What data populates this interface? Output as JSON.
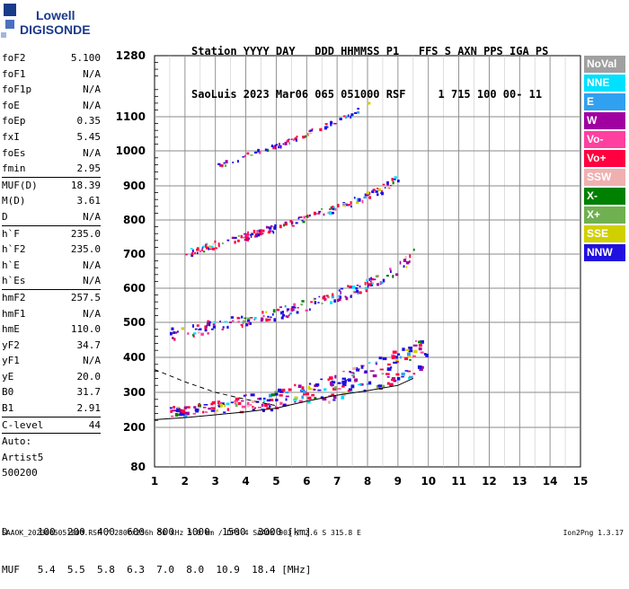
{
  "logo": {
    "line1": "Lowell",
    "line2": "DIGISONDE"
  },
  "header": {
    "line1": "Station YYYY DAY   DDD HHMMSS P1   FFS S AXN PPS IGA PS",
    "line2": "SaoLuis 2023 Mar06 065 051000 RSF     1 715 100 00- 11"
  },
  "params": {
    "group1": [
      {
        "name": "foF2",
        "value": "5.100"
      },
      {
        "name": "foF1",
        "value": "N/A"
      },
      {
        "name": "foF1p",
        "value": "N/A"
      },
      {
        "name": "foE",
        "value": "N/A"
      },
      {
        "name": "foEp",
        "value": "0.35"
      },
      {
        "name": "fxI",
        "value": "5.45"
      },
      {
        "name": "foEs",
        "value": "N/A"
      },
      {
        "name": "fmin",
        "value": "2.95"
      }
    ],
    "group2": [
      {
        "name": "MUF(D)",
        "value": "18.39"
      },
      {
        "name": "M(D)",
        "value": "3.61"
      },
      {
        "name": "D",
        "value": "N/A"
      }
    ],
    "group3": [
      {
        "name": "h`F",
        "value": "235.0"
      },
      {
        "name": "h`F2",
        "value": "235.0"
      },
      {
        "name": "h`E",
        "value": "N/A"
      },
      {
        "name": "h`Es",
        "value": "N/A"
      }
    ],
    "group4": [
      {
        "name": "hmF2",
        "value": "257.5"
      },
      {
        "name": "hmF1",
        "value": "N/A"
      },
      {
        "name": "hmE",
        "value": "110.0"
      },
      {
        "name": "yF2",
        "value": "34.7"
      },
      {
        "name": "yF1",
        "value": "N/A"
      },
      {
        "name": "yE",
        "value": "20.0"
      },
      {
        "name": "B0",
        "value": "31.7"
      },
      {
        "name": "B1",
        "value": "2.91"
      }
    ],
    "group5": [
      {
        "name": "C-level",
        "value": "44"
      }
    ],
    "group6": [
      {
        "name": "Auto:",
        "value": ""
      },
      {
        "name": "Artist5",
        "value": ""
      },
      {
        "name": "500200",
        "value": ""
      }
    ]
  },
  "legend": [
    {
      "label": "NoVal",
      "color": "#a0a0a0"
    },
    {
      "label": "NNE",
      "color": "#00e0ff"
    },
    {
      "label": "E",
      "color": "#30a0f0"
    },
    {
      "label": "W",
      "color": "#a000a0"
    },
    {
      "label": "Vo-",
      "color": "#ff40a0"
    },
    {
      "label": "Vo+",
      "color": "#ff0040"
    },
    {
      "label": "SSW",
      "color": "#f0b0b0"
    },
    {
      "label": "X-",
      "color": "#008000"
    },
    {
      "label": "X+",
      "color": "#70b050"
    },
    {
      "label": "SSE",
      "color": "#d0d000"
    },
    {
      "label": "NNW",
      "color": "#2010e0"
    }
  ],
  "footer": {
    "line1": "D     100  200  400  600  800  1000  1500  3000 [km]",
    "line2": "MUF   5.4  5.5  5.8  6.3  7.0  8.0  10.9  18.4 [MHz]",
    "bottom": "SAAOK_2023065051000.RSF / 280fx256h 50 kHz 5.0 km / DPS-4 SAAOK 903 / 2.6 S 315.8 E",
    "version": "Ion2Png 1.3.17"
  },
  "chart_data": {
    "type": "scatter",
    "x_ticks": [
      1,
      2,
      3,
      4,
      5,
      6,
      7,
      8,
      9,
      10,
      11,
      12,
      13,
      14,
      15
    ],
    "y_ticks": [
      80,
      200,
      300,
      400,
      500,
      600,
      700,
      800,
      900,
      1000,
      1100,
      1280
    ],
    "xlim": [
      1,
      15
    ],
    "ylim": [
      80,
      1280
    ],
    "grid": true,
    "traces": [
      {
        "name": "",
        "x": [
          1.5,
          2,
          2.5,
          3,
          3.5,
          4,
          4.5,
          5,
          5.5,
          6,
          6.5,
          7,
          7.5,
          8,
          8.5,
          9,
          9.5,
          10
        ],
        "y": [
          240,
          245,
          250,
          252,
          255,
          258,
          262,
          268,
          275,
          282,
          290,
          300,
          312,
          325,
          340,
          355,
          375,
          395
        ]
      },
      {
        "name": "",
        "x": [
          1.5,
          2,
          2.5,
          3,
          3.5,
          4,
          4.5,
          5,
          5.5,
          6,
          6.5,
          7,
          7.5,
          8,
          8.5,
          9,
          9.5
        ],
        "y": [
          460,
          468,
          476,
          485,
          492,
          500,
          510,
          520,
          530,
          545,
          558,
          572,
          590,
          605,
          625,
          650,
          690
        ]
      },
      {
        "name": "",
        "x": [
          2,
          2.5,
          3,
          3.5,
          4,
          4.5,
          5,
          5.5,
          6,
          6.5,
          7,
          7.5,
          8,
          8.5,
          9
        ],
        "y": [
          700,
          712,
          725,
          738,
          750,
          762,
          775,
          790,
          805,
          820,
          835,
          850,
          870,
          890,
          920
        ]
      },
      {
        "name": "",
        "x": [
          3,
          3.5,
          4,
          4.5,
          5,
          5.5,
          6,
          6.5,
          7,
          7.5,
          8
        ],
        "y": [
          955,
          970,
          985,
          1000,
          1015,
          1030,
          1050,
          1070,
          1090,
          1110,
          1140
        ]
      }
    ],
    "curves": [
      {
        "name": "",
        "style": "solid",
        "x": [
          1,
          2,
          3,
          4,
          5,
          6,
          7,
          8,
          9,
          9.5
        ],
        "y": [
          222,
          228,
          236,
          244,
          255,
          275,
          292,
          305,
          320,
          340
        ]
      },
      {
        "name": "",
        "style": "dashed",
        "x": [
          1,
          2,
          3,
          4,
          5
        ],
        "y": [
          365,
          330,
          300,
          280,
          262
        ]
      }
    ]
  }
}
